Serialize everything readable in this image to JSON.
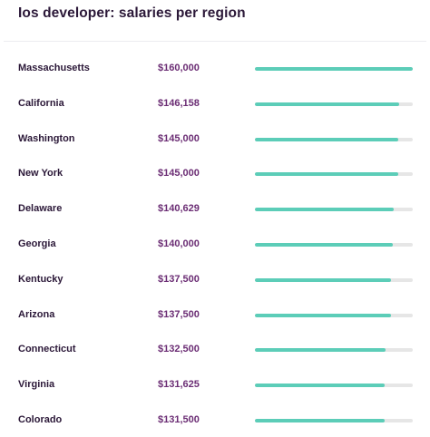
{
  "page_title": "Ios developer: salaries per region",
  "colors": {
    "bar_fill": "#5ccdb8",
    "bar_track": "#e6e6e6",
    "salary_text": "#6b2d74",
    "region_text": "#2b1838"
  },
  "chart_data": {
    "type": "bar",
    "orientation": "horizontal",
    "title": "Ios developer: salaries per region",
    "xlim": [
      0,
      160000
    ],
    "grid": false,
    "categories": [
      "Massachusetts",
      "California",
      "Washington",
      "New York",
      "Delaware",
      "Georgia",
      "Kentucky",
      "Arizona",
      "Connecticut",
      "Virginia",
      "Colorado"
    ],
    "values": [
      160000,
      146158,
      145000,
      145000,
      140629,
      140000,
      137500,
      137500,
      132500,
      131625,
      131500
    ],
    "value_labels": [
      "$160,000",
      "$146,158",
      "$145,000",
      "$145,000",
      "$140,629",
      "$140,000",
      "$137,500",
      "$137,500",
      "$132,500",
      "$131,625",
      "$131,500"
    ]
  }
}
